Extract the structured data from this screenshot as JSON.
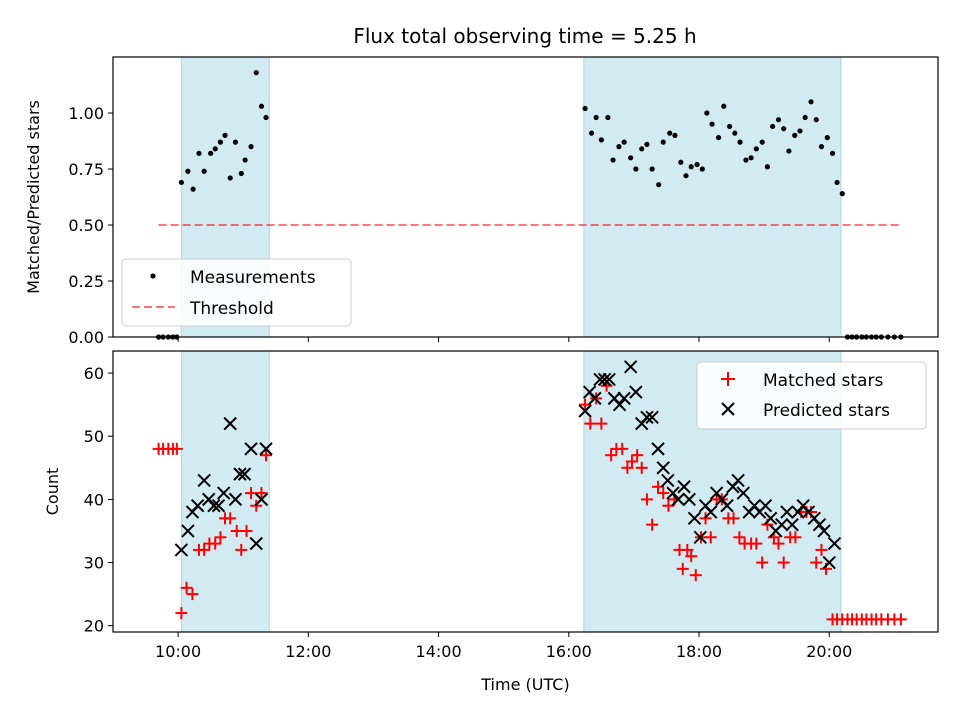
{
  "title": "Flux total observing time = 5.25 h",
  "colors": {
    "shade": "#add8e6",
    "measurement": "#000000",
    "threshold": "#ff0000",
    "matched": "#ff0000",
    "predicted": "#000000"
  },
  "chart_data": [
    {
      "type": "scatter",
      "ylabel": "Matched/Predicted stars",
      "ylim": [
        0,
        1.25
      ],
      "yticks": [
        0.0,
        0.25,
        0.5,
        0.75,
        1.0
      ],
      "ytick_labels": [
        "0.00",
        "0.25",
        "0.50",
        "0.75",
        "1.00"
      ],
      "xlim": [
        9.0,
        21.67
      ],
      "shaded_spans": [
        [
          10.05,
          11.4
        ],
        [
          16.23,
          20.18
        ]
      ],
      "legend": {
        "position": "lower left",
        "items": [
          {
            "label": "Measurements"
          },
          {
            "label": "Threshold"
          }
        ]
      },
      "threshold": {
        "name": "Threshold",
        "x": [
          9.7,
          21.1
        ],
        "y": 0.5
      },
      "series": [
        {
          "name": "Measurements",
          "marker": "dot",
          "points": [
            [
              9.7,
              0
            ],
            [
              9.77,
              0
            ],
            [
              9.85,
              0
            ],
            [
              9.92,
              0
            ],
            [
              9.98,
              0
            ],
            [
              10.05,
              0.69
            ],
            [
              10.15,
              0.74
            ],
            [
              10.23,
              0.66
            ],
            [
              10.32,
              0.82
            ],
            [
              10.4,
              0.74
            ],
            [
              10.5,
              0.82
            ],
            [
              10.57,
              0.84
            ],
            [
              10.65,
              0.87
            ],
            [
              10.72,
              0.9
            ],
            [
              10.8,
              0.71
            ],
            [
              10.88,
              0.87
            ],
            [
              10.97,
              0.73
            ],
            [
              11.03,
              0.79
            ],
            [
              11.12,
              0.85
            ],
            [
              11.2,
              1.18
            ],
            [
              11.28,
              1.03
            ],
            [
              11.35,
              0.98
            ],
            [
              16.25,
              1.02
            ],
            [
              16.35,
              0.91
            ],
            [
              16.42,
              0.98
            ],
            [
              16.5,
              0.88
            ],
            [
              16.6,
              0.98
            ],
            [
              16.68,
              0.79
            ],
            [
              16.77,
              0.85
            ],
            [
              16.85,
              0.87
            ],
            [
              16.95,
              0.8
            ],
            [
              17.03,
              0.75
            ],
            [
              17.12,
              0.84
            ],
            [
              17.2,
              0.86
            ],
            [
              17.28,
              0.75
            ],
            [
              17.38,
              0.68
            ],
            [
              17.45,
              0.87
            ],
            [
              17.55,
              0.91
            ],
            [
              17.63,
              0.9
            ],
            [
              17.72,
              0.78
            ],
            [
              17.8,
              0.72
            ],
            [
              17.88,
              0.76
            ],
            [
              17.97,
              0.77
            ],
            [
              18.05,
              0.75
            ],
            [
              18.12,
              1.0
            ],
            [
              18.2,
              0.95
            ],
            [
              18.3,
              0.89
            ],
            [
              18.38,
              1.03
            ],
            [
              18.47,
              0.94
            ],
            [
              18.55,
              0.91
            ],
            [
              18.63,
              0.87
            ],
            [
              18.72,
              0.79
            ],
            [
              18.8,
              0.8
            ],
            [
              18.88,
              0.84
            ],
            [
              18.97,
              0.87
            ],
            [
              19.05,
              0.76
            ],
            [
              19.13,
              0.94
            ],
            [
              19.22,
              0.97
            ],
            [
              19.3,
              0.93
            ],
            [
              19.38,
              0.83
            ],
            [
              19.47,
              0.9
            ],
            [
              19.55,
              0.92
            ],
            [
              19.63,
              0.98
            ],
            [
              19.72,
              1.05
            ],
            [
              19.8,
              0.97
            ],
            [
              19.88,
              0.85
            ],
            [
              19.97,
              0.89
            ],
            [
              20.05,
              0.82
            ],
            [
              20.12,
              0.69
            ],
            [
              20.2,
              0.64
            ],
            [
              20.28,
              0
            ],
            [
              20.35,
              0
            ],
            [
              20.42,
              0
            ],
            [
              20.5,
              0
            ],
            [
              20.57,
              0
            ],
            [
              20.65,
              0
            ],
            [
              20.72,
              0
            ],
            [
              20.8,
              0
            ],
            [
              20.9,
              0
            ],
            [
              21.0,
              0
            ],
            [
              21.1,
              0
            ]
          ]
        }
      ]
    },
    {
      "type": "scatter",
      "xlabel": "Time (UTC)",
      "ylabel": "Count",
      "ylim": [
        19,
        63.5
      ],
      "yticks": [
        20,
        30,
        40,
        50,
        60
      ],
      "xlim": [
        9.0,
        21.67
      ],
      "xticks": [
        10,
        12,
        14,
        16,
        18,
        20
      ],
      "xtick_labels": [
        "10:00",
        "12:00",
        "14:00",
        "16:00",
        "18:00",
        "20:00"
      ],
      "shaded_spans": [
        [
          10.05,
          11.4
        ],
        [
          16.23,
          20.18
        ]
      ],
      "legend": {
        "position": "top right",
        "items": [
          {
            "label": "Matched stars"
          },
          {
            "label": "Predicted stars"
          }
        ]
      },
      "series": [
        {
          "name": "Matched stars",
          "marker": "plus",
          "points": [
            [
              9.7,
              48
            ],
            [
              9.77,
              48
            ],
            [
              9.85,
              48
            ],
            [
              9.92,
              48
            ],
            [
              9.98,
              48
            ],
            [
              10.05,
              22
            ],
            [
              10.13,
              26
            ],
            [
              10.22,
              25
            ],
            [
              10.32,
              32
            ],
            [
              10.4,
              32
            ],
            [
              10.48,
              33
            ],
            [
              10.57,
              33
            ],
            [
              10.65,
              34
            ],
            [
              10.72,
              37
            ],
            [
              10.8,
              37
            ],
            [
              10.9,
              35
            ],
            [
              10.97,
              32
            ],
            [
              11.05,
              35
            ],
            [
              11.12,
              41
            ],
            [
              11.2,
              39
            ],
            [
              11.28,
              41
            ],
            [
              11.35,
              47
            ],
            [
              16.25,
              55
            ],
            [
              16.33,
              52
            ],
            [
              16.42,
              56
            ],
            [
              16.5,
              52
            ],
            [
              16.58,
              58
            ],
            [
              16.65,
              47
            ],
            [
              16.73,
              48
            ],
            [
              16.82,
              48
            ],
            [
              16.9,
              45
            ],
            [
              16.97,
              46
            ],
            [
              17.05,
              47
            ],
            [
              17.12,
              45
            ],
            [
              17.2,
              40
            ],
            [
              17.28,
              36
            ],
            [
              17.37,
              42
            ],
            [
              17.45,
              41
            ],
            [
              17.53,
              39
            ],
            [
              17.62,
              40
            ],
            [
              17.7,
              32
            ],
            [
              17.75,
              29
            ],
            [
              17.82,
              32
            ],
            [
              17.88,
              31
            ],
            [
              17.95,
              28
            ],
            [
              18.03,
              34
            ],
            [
              18.1,
              37
            ],
            [
              18.18,
              34
            ],
            [
              18.27,
              40
            ],
            [
              18.35,
              40
            ],
            [
              18.45,
              37
            ],
            [
              18.53,
              37
            ],
            [
              18.62,
              34
            ],
            [
              18.7,
              33
            ],
            [
              18.8,
              33
            ],
            [
              18.88,
              33
            ],
            [
              18.97,
              30
            ],
            [
              19.05,
              36
            ],
            [
              19.15,
              34
            ],
            [
              19.22,
              33
            ],
            [
              19.3,
              30
            ],
            [
              19.4,
              34
            ],
            [
              19.48,
              34
            ],
            [
              19.57,
              38
            ],
            [
              19.65,
              38
            ],
            [
              19.72,
              38
            ],
            [
              19.8,
              30
            ],
            [
              19.88,
              32
            ],
            [
              19.95,
              29
            ],
            [
              20.05,
              21
            ],
            [
              20.12,
              21
            ],
            [
              20.2,
              21
            ],
            [
              20.28,
              21
            ],
            [
              20.35,
              21
            ],
            [
              20.42,
              21
            ],
            [
              20.5,
              21
            ],
            [
              20.57,
              21
            ],
            [
              20.65,
              21
            ],
            [
              20.72,
              21
            ],
            [
              20.8,
              21
            ],
            [
              20.9,
              21
            ],
            [
              21.0,
              21
            ],
            [
              21.1,
              21
            ]
          ]
        },
        {
          "name": "Predicted stars",
          "marker": "x",
          "points": [
            [
              10.05,
              32
            ],
            [
              10.15,
              35
            ],
            [
              10.22,
              38
            ],
            [
              10.3,
              39
            ],
            [
              10.4,
              43
            ],
            [
              10.47,
              40
            ],
            [
              10.55,
              39
            ],
            [
              10.62,
              39
            ],
            [
              10.7,
              41
            ],
            [
              10.8,
              52
            ],
            [
              10.88,
              40
            ],
            [
              10.95,
              44
            ],
            [
              11.02,
              44
            ],
            [
              11.12,
              48
            ],
            [
              11.2,
              33
            ],
            [
              11.28,
              40
            ],
            [
              11.35,
              48
            ],
            [
              16.25,
              54
            ],
            [
              16.32,
              57
            ],
            [
              16.4,
              56
            ],
            [
              16.48,
              59
            ],
            [
              16.55,
              59
            ],
            [
              16.62,
              59
            ],
            [
              16.7,
              56
            ],
            [
              16.78,
              55
            ],
            [
              16.85,
              56
            ],
            [
              16.95,
              61
            ],
            [
              17.03,
              57
            ],
            [
              17.12,
              52
            ],
            [
              17.2,
              53
            ],
            [
              17.28,
              53
            ],
            [
              17.37,
              48
            ],
            [
              17.45,
              45
            ],
            [
              17.52,
              43
            ],
            [
              17.6,
              41
            ],
            [
              17.68,
              40
            ],
            [
              17.77,
              42
            ],
            [
              17.85,
              40
            ],
            [
              17.93,
              37
            ],
            [
              18.02,
              34
            ],
            [
              18.1,
              39
            ],
            [
              18.18,
              38
            ],
            [
              18.27,
              41
            ],
            [
              18.35,
              40
            ],
            [
              18.43,
              39
            ],
            [
              18.52,
              42
            ],
            [
              18.6,
              43
            ],
            [
              18.68,
              41
            ],
            [
              18.77,
              38
            ],
            [
              18.85,
              39
            ],
            [
              18.93,
              38
            ],
            [
              19.02,
              39
            ],
            [
              19.1,
              37
            ],
            [
              19.18,
              35
            ],
            [
              19.27,
              36
            ],
            [
              19.35,
              38
            ],
            [
              19.43,
              36
            ],
            [
              19.52,
              38
            ],
            [
              19.6,
              39
            ],
            [
              19.68,
              38
            ],
            [
              19.77,
              37
            ],
            [
              19.85,
              36
            ],
            [
              19.92,
              35
            ],
            [
              20.0,
              30
            ],
            [
              20.08,
              33
            ]
          ]
        }
      ]
    }
  ]
}
